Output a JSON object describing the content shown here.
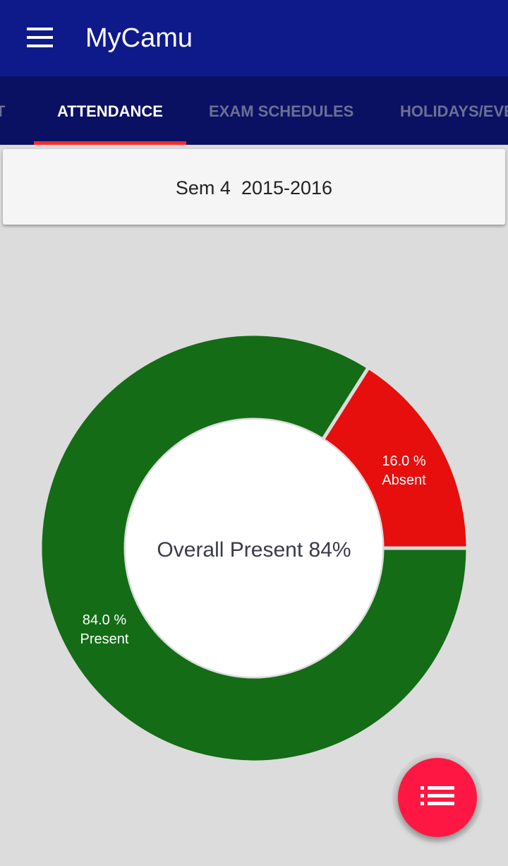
{
  "app": {
    "title": "MyCamu",
    "menu_icon": "hamburger-menu-icon"
  },
  "tabs": [
    {
      "label": "NT",
      "active": false
    },
    {
      "label": "ATTENDANCE",
      "active": true
    },
    {
      "label": "EXAM SCHEDULES",
      "active": false
    },
    {
      "label": "HOLIDAYS/EVENTS",
      "active": false
    }
  ],
  "semester": {
    "label": "Sem 4  2015-2016"
  },
  "chart_data": {
    "type": "pie",
    "center_text": "Overall Present 84%",
    "slices": [
      {
        "label": "Present",
        "value": 84.0,
        "value_label": "84.0 %",
        "color": "#146c16"
      },
      {
        "label": "Absent",
        "value": 16.0,
        "value_label": "16.0 %",
        "color": "#e60f0d"
      }
    ]
  },
  "fab": {
    "icon": "list-icon",
    "color": "#ff1744"
  },
  "colors": {
    "app_bar": "#0f1a8a",
    "tab_bar": "#0a1163",
    "tab_indicator": "#ff2a2a",
    "background": "#dcdcdc"
  }
}
